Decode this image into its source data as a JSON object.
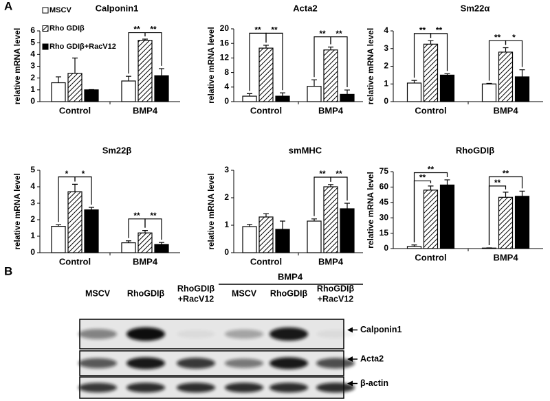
{
  "panels": {
    "a": "A",
    "b": "B"
  },
  "chart_data": [
    {
      "type": "bar",
      "title": "Calponin1",
      "ylabel": "relative mRNA level",
      "categories": [
        "Control",
        "BMP4"
      ],
      "ylim": [
        0,
        6
      ],
      "yticks": [
        0,
        1,
        2,
        3,
        4,
        5,
        6
      ],
      "legend": "upper left",
      "series": [
        {
          "name": "MSCV",
          "color": "#ffffff",
          "values": [
            1.6,
            1.75
          ],
          "errors": [
            0.5,
            0.4
          ]
        },
        {
          "name": "Rho GDIβ",
          "color": "hatch",
          "values": [
            2.4,
            5.2
          ],
          "errors": [
            1.3,
            0.1
          ]
        },
        {
          "name": "Rho GDIβ+RacV12",
          "color": "#000000",
          "values": [
            1.0,
            2.2
          ],
          "errors": [
            0.02,
            0.6
          ]
        }
      ],
      "annotations": [
        "**",
        "**"
      ]
    },
    {
      "type": "bar",
      "title": "Acta2",
      "ylabel": "relative mRNA level",
      "categories": [
        "Control",
        "BMP4"
      ],
      "ylim": [
        0,
        20
      ],
      "yticks": [
        0,
        4,
        8,
        12,
        16,
        20
      ],
      "series": [
        {
          "color": "#ffffff",
          "values": [
            1.5,
            4.2
          ],
          "errors": [
            0.7,
            1.8
          ]
        },
        {
          "color": "hatch",
          "values": [
            14.7,
            14.2
          ],
          "errors": [
            0.8,
            0.8
          ]
        },
        {
          "color": "#000000",
          "values": [
            1.5,
            2.0
          ],
          "errors": [
            0.9,
            1.2
          ]
        }
      ],
      "annotations": [
        "**",
        "**",
        "**",
        "**"
      ]
    },
    {
      "type": "bar",
      "title": "Sm22α",
      "ylabel": "relative mRNA level",
      "categories": [
        "Control",
        "BMP4"
      ],
      "ylim": [
        0,
        4
      ],
      "yticks": [
        0,
        1,
        2,
        3,
        4
      ],
      "series": [
        {
          "color": "#ffffff",
          "values": [
            1.05,
            1.0
          ],
          "errors": [
            0.15,
            0.03
          ]
        },
        {
          "color": "hatch",
          "values": [
            3.25,
            2.8
          ],
          "errors": [
            0.2,
            0.25
          ]
        },
        {
          "color": "#000000",
          "values": [
            1.5,
            1.4
          ],
          "errors": [
            0.08,
            0.4
          ]
        }
      ],
      "annotations": [
        "**",
        "**",
        "**",
        "*"
      ]
    },
    {
      "type": "bar",
      "title": "Sm22β",
      "ylabel": "relative mRNA level",
      "categories": [
        "Control",
        "BMP4"
      ],
      "ylim": [
        0,
        5
      ],
      "yticks": [
        0,
        1,
        2,
        3,
        4,
        5
      ],
      "series": [
        {
          "color": "#ffffff",
          "values": [
            1.6,
            0.6
          ],
          "errors": [
            0.1,
            0.12
          ]
        },
        {
          "color": "hatch",
          "values": [
            3.7,
            1.2
          ],
          "errors": [
            0.45,
            0.15
          ]
        },
        {
          "color": "#000000",
          "values": [
            2.6,
            0.5
          ],
          "errors": [
            0.15,
            0.12
          ]
        }
      ],
      "annotations": [
        "*",
        "*",
        "**",
        "**"
      ]
    },
    {
      "type": "bar",
      "title": "smMHC",
      "ylabel": "relative mRNA level",
      "categories": [
        "Control",
        "BMP4"
      ],
      "ylim": [
        0,
        3
      ],
      "yticks": [
        0,
        1,
        2,
        3
      ],
      "series": [
        {
          "color": "#ffffff",
          "values": [
            0.95,
            1.15
          ],
          "errors": [
            0.08,
            0.08
          ]
        },
        {
          "color": "hatch",
          "values": [
            1.3,
            2.4
          ],
          "errors": [
            0.12,
            0.08
          ]
        },
        {
          "color": "#000000",
          "values": [
            0.85,
            1.6
          ],
          "errors": [
            0.3,
            0.2
          ]
        }
      ],
      "annotations": [
        "**",
        "**"
      ]
    },
    {
      "type": "bar",
      "title": "RhoGDIβ",
      "ylabel": "relative mRNA level",
      "categories": [
        "Control",
        "BMP4"
      ],
      "ylim": [
        0,
        75
      ],
      "yticks": [
        0,
        15,
        30,
        45,
        60,
        75
      ],
      "series": [
        {
          "color": "#ffffff",
          "values": [
            2,
            0.5
          ],
          "errors": [
            1.5,
            0.2
          ]
        },
        {
          "color": "hatch",
          "values": [
            57,
            50
          ],
          "errors": [
            4,
            5
          ]
        },
        {
          "color": "#000000",
          "values": [
            62,
            51
          ],
          "errors": [
            5,
            5
          ]
        }
      ],
      "annotations": [
        "**",
        "**",
        "**",
        "**"
      ]
    }
  ],
  "blot": {
    "group": "BMP4",
    "lanes": [
      [
        "MSCV"
      ],
      [
        "RhoGDIβ"
      ],
      [
        "RhoGDIβ",
        "+RacV12"
      ],
      [
        "MSCV"
      ],
      [
        "RhoGDIβ"
      ],
      [
        "RhoGDIβ",
        "+RacV12"
      ]
    ],
    "rows": [
      "Calponin1",
      "Acta2",
      "β-actin"
    ]
  }
}
